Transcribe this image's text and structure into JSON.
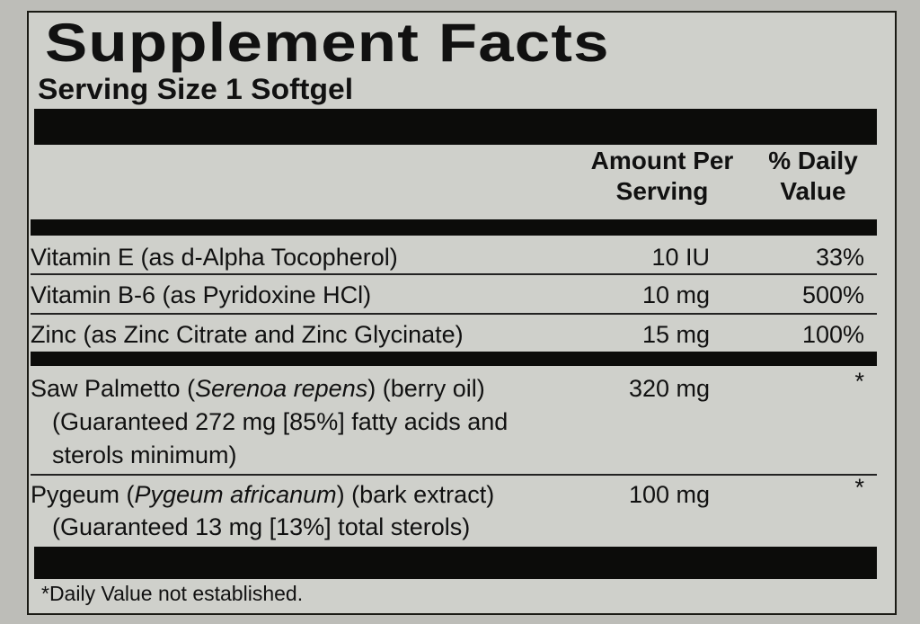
{
  "title": "Supplement Facts",
  "serving_size": "Serving Size 1 Softgel",
  "headers": {
    "amount_line1": "Amount Per",
    "amount_line2": "Serving",
    "dv_line1": "% Daily",
    "dv_line2": "Value"
  },
  "rows": [
    {
      "name": "Vitamin E (as d-Alpha Tocopherol)",
      "amount": "10 IU",
      "dv": "33%"
    },
    {
      "name": "Vitamin B-6 (as Pyridoxine HCl)",
      "amount": "10 mg",
      "dv": "500%"
    },
    {
      "name": "Zinc (as Zinc Citrate and Zinc Glycinate)",
      "amount": "15 mg",
      "dv": "100%"
    }
  ],
  "saw_palmetto": {
    "name_pre": "Saw Palmetto (",
    "name_italic": "Serenoa repens",
    "name_post": ") (berry oil)",
    "line2": "(Guaranteed 272 mg [85%] fatty acids and",
    "line3": "sterols minimum)",
    "amount": "320 mg",
    "dv": "*"
  },
  "pygeum": {
    "name_pre": "Pygeum (",
    "name_italic": "Pygeum africanum",
    "name_post": ") (bark extract)",
    "line2": "(Guaranteed 13 mg [13%] total sterols)",
    "amount": "100 mg",
    "dv": "*"
  },
  "footnote": "*Daily Value not established."
}
